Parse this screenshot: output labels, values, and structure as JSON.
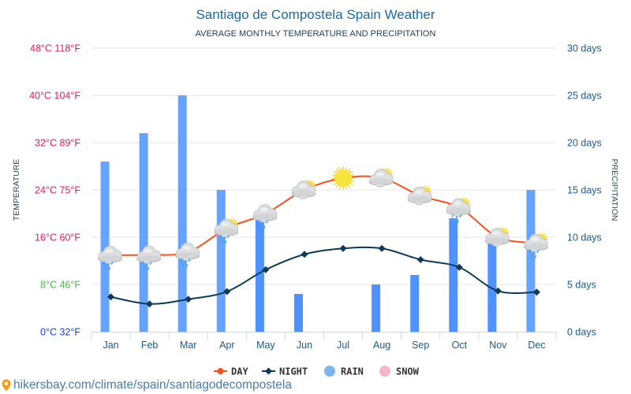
{
  "header": {
    "title": "Santiago de Compostela Spain Weather",
    "subtitle": "AVERAGE MONTHLY TEMPERATURE AND PRECIPITATION"
  },
  "chart_data": {
    "type": "bar",
    "title": "Santiago de Compostela Spain Weather",
    "subtitle": "AVERAGE MONTHLY TEMPERATURE AND PRECIPITATION",
    "categories": [
      "Jan",
      "Feb",
      "Mar",
      "Apr",
      "May",
      "Jun",
      "Jul",
      "Aug",
      "Sep",
      "Oct",
      "Nov",
      "Dec"
    ],
    "series": [
      {
        "name": "DAY",
        "type": "line",
        "axis": "left",
        "unit": "°C",
        "color": "#f4511e",
        "values": [
          13,
          13,
          13.5,
          17.5,
          20,
          24,
          26,
          26,
          23,
          21,
          16,
          15
        ]
      },
      {
        "name": "NIGHT",
        "type": "line",
        "axis": "left",
        "unit": "°C",
        "color": "#0d3b56",
        "values": [
          5.9,
          4.7,
          5.5,
          6.8,
          10.5,
          13.1,
          14.1,
          14.1,
          12.2,
          10.9,
          6.9,
          6.7
        ]
      },
      {
        "name": "RAIN",
        "type": "bar",
        "axis": "right",
        "unit": "days",
        "color": "#66a3ff",
        "bar_colors": [
          "#66a3ff",
          "#66a3ff",
          "#66a3ff",
          "#66a3ff",
          "#4f91ff",
          "#4f91ff",
          "#4f91ff",
          "#4f91ff",
          "#4f91ff",
          "#4f91ff",
          "#4f91ff",
          "#66a3ff"
        ],
        "values": [
          18,
          21,
          25,
          15,
          12,
          4,
          0,
          5,
          6,
          12,
          10,
          15
        ]
      },
      {
        "name": "SNOW",
        "type": "bar",
        "axis": "right",
        "unit": "days",
        "color": "#f7b6c8",
        "values": [
          0,
          0,
          0,
          0,
          0,
          0,
          0,
          0,
          0,
          0,
          0,
          0
        ]
      }
    ],
    "weather_icons": [
      "cloud-rain",
      "cloud-rain",
      "cloud-rain",
      "sun-cloud-rain",
      "cloud-rain",
      "sun-cloud",
      "sun",
      "sun-cloud",
      "sun-cloud",
      "sun-cloud-rain",
      "sun-cloud",
      "sun-cloud-rain"
    ],
    "y_left": {
      "label": "TEMPERATURE",
      "range": [
        0,
        48
      ],
      "ticks": [
        {
          "value": 0,
          "label": "0°C 32°F",
          "color": "#1a3ed6"
        },
        {
          "value": 8,
          "label": "8°C 46°F",
          "color": "#4cb848"
        },
        {
          "value": 16,
          "label": "16°C 60°F",
          "color": "#e5195f"
        },
        {
          "value": 24,
          "label": "24°C 75°F",
          "color": "#e5195f"
        },
        {
          "value": 32,
          "label": "32°C 89°F",
          "color": "#e5195f"
        },
        {
          "value": 40,
          "label": "40°C 104°F",
          "color": "#e5195f"
        },
        {
          "value": 48,
          "label": "48°C 118°F",
          "color": "#e5195f"
        }
      ]
    },
    "y_right": {
      "label": "PRECIPITATION",
      "range": [
        0,
        30
      ],
      "ticks": [
        {
          "value": 0,
          "label": "0 days"
        },
        {
          "value": 5,
          "label": "5 days"
        },
        {
          "value": 10,
          "label": "10 days"
        },
        {
          "value": 15,
          "label": "15 days"
        },
        {
          "value": 20,
          "label": "20 days"
        },
        {
          "value": 25,
          "label": "25 days"
        },
        {
          "value": 30,
          "label": "30 days"
        }
      ]
    },
    "grid": true,
    "legend": {
      "position": "bottom",
      "entries": [
        {
          "label": "DAY",
          "symbol": "line-circle",
          "color": "#f4511e"
        },
        {
          "label": "NIGHT",
          "symbol": "line-diamond",
          "color": "#0d3b56"
        },
        {
          "label": "RAIN",
          "symbol": "circle",
          "color": "#7cb5ec"
        },
        {
          "label": "SNOW",
          "symbol": "circle",
          "color": "#f7b6c8"
        }
      ]
    }
  },
  "footer": {
    "url": "hikersbay.com/climate/spain/santiagodecompostela",
    "icon": "location-pin-icon",
    "icon_color": "#f39c12"
  }
}
